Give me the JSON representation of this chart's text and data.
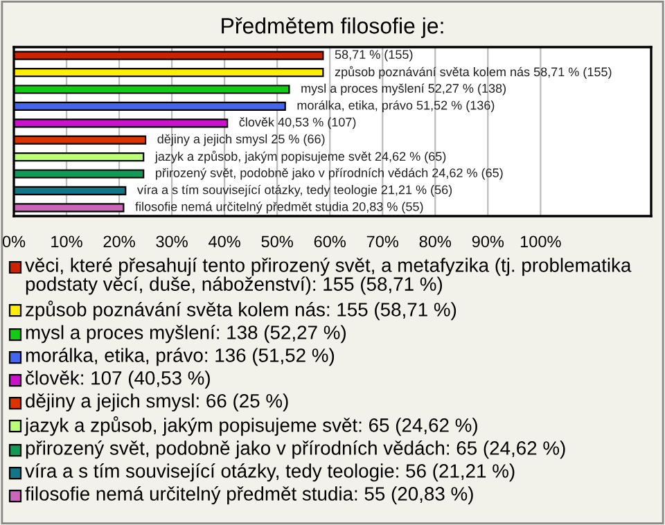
{
  "chart_data": {
    "type": "bar",
    "orientation": "horizontal",
    "title": "Předmětem filosofie je:",
    "categories": [
      null,
      null,
      null,
      null,
      null,
      null,
      null,
      null,
      null,
      null
    ],
    "xlim": [
      0,
      121
    ],
    "xticks": [
      {
        "value": 0,
        "label": "0%"
      },
      {
        "value": 10,
        "label": "10%"
      },
      {
        "value": 20,
        "label": "20%"
      },
      {
        "value": 30,
        "label": "30%"
      },
      {
        "value": 40,
        "label": "40%"
      },
      {
        "value": 50,
        "label": "50%"
      },
      {
        "value": 60,
        "label": "60%"
      },
      {
        "value": 70,
        "label": "70%"
      },
      {
        "value": 80,
        "label": "80%"
      },
      {
        "value": 90,
        "label": "90%"
      },
      {
        "value": 100,
        "label": "100%"
      }
    ],
    "tick_labels": "x",
    "grid": "x",
    "legend": "bottom",
    "series": [
      {
        "name": "věci, které přesahují tento přirozený svět, a metafyzika (tj. problematika podstaty věcí, duše, náboženství): 155 (58,71 %)",
        "color": "#cc2200",
        "values": [
          58.71,
          null,
          null,
          null,
          null,
          null,
          null,
          null,
          null,
          null
        ],
        "value_labels": [
          "58,71 % (155)",
          null,
          null,
          null,
          null,
          null,
          null,
          null,
          null,
          null
        ]
      },
      {
        "name": "způsob poznávání světa kolem nás: 155 (58,71 %)",
        "color": "#ffee00",
        "values": [
          null,
          58.71,
          null,
          null,
          null,
          null,
          null,
          null,
          null,
          null
        ],
        "value_labels": [
          null,
          "způsob poznávání světa kolem nás 58,71 % (155)",
          null,
          null,
          null,
          null,
          null,
          null,
          null,
          null
        ]
      },
      {
        "name": "mysl a proces myšlení: 138 (52,27 %)",
        "color": "#11cc11",
        "values": [
          null,
          null,
          52.27,
          null,
          null,
          null,
          null,
          null,
          null,
          null
        ],
        "value_labels": [
          null,
          null,
          "mysl a proces myšlení 52,27 % (138)",
          null,
          null,
          null,
          null,
          null,
          null,
          null
        ]
      },
      {
        "name": "morálka, etika, právo: 136 (51,52 %)",
        "color": "#4466ee",
        "values": [
          null,
          null,
          null,
          51.52,
          null,
          null,
          null,
          null,
          null,
          null
        ],
        "value_labels": [
          null,
          null,
          null,
          "morálka, etika, právo 51,52 % (136)",
          null,
          null,
          null,
          null,
          null,
          null
        ]
      },
      {
        "name": "člověk: 107 (40,53 %)",
        "color": "#cc11cc",
        "values": [
          null,
          null,
          null,
          null,
          40.53,
          null,
          null,
          null,
          null,
          null
        ],
        "value_labels": [
          null,
          null,
          null,
          null,
          "člověk 40,53 % (107)",
          null,
          null,
          null,
          null,
          null
        ]
      },
      {
        "name": "dějiny a jejich smysl: 66 (25 %)",
        "color": "#dd3300",
        "values": [
          null,
          null,
          null,
          null,
          null,
          25,
          null,
          null,
          null,
          null
        ],
        "value_labels": [
          null,
          null,
          null,
          null,
          null,
          "dějiny a jejich smysl 25 % (66)",
          null,
          null,
          null,
          null
        ]
      },
      {
        "name": "jazyk a způsob, jakým popisujeme svět: 65 (24,62 %)",
        "color": "#bbff77",
        "values": [
          null,
          null,
          null,
          null,
          null,
          null,
          24.62,
          null,
          null,
          null
        ],
        "value_labels": [
          null,
          null,
          null,
          null,
          null,
          null,
          "jazyk a způsob, jakým popisujeme svět 24,62 % (65)",
          null,
          null,
          null
        ]
      },
      {
        "name": "přirozený svět, podobně jako v přírodních vědách: 65 (24,62 %)",
        "color": "#119955",
        "values": [
          null,
          null,
          null,
          null,
          null,
          null,
          null,
          24.62,
          null,
          null
        ],
        "value_labels": [
          null,
          null,
          null,
          null,
          null,
          null,
          null,
          "přirozený svět, podobně jako v přírodních vědách 24,62 % (65)",
          null,
          null
        ]
      },
      {
        "name": "víra a s tím související otázky, tedy teologie: 56 (21,21 %)",
        "color": "#117788",
        "values": [
          null,
          null,
          null,
          null,
          null,
          null,
          null,
          null,
          21.21,
          null
        ],
        "value_labels": [
          null,
          null,
          null,
          null,
          null,
          null,
          null,
          null,
          "víra a s tím související otázky, tedy teologie 21,21 % (56)",
          null
        ]
      },
      {
        "name": "filosofie nemá určitelný předmět studia: 55 (20,83 %)",
        "color": "#cc66bb",
        "values": [
          null,
          null,
          null,
          null,
          null,
          null,
          null,
          null,
          null,
          20.83
        ],
        "value_labels": [
          null,
          null,
          null,
          null,
          null,
          null,
          null,
          null,
          null,
          "filosofie nemá určitelný předmět studia 20,83 % (55)"
        ]
      }
    ]
  }
}
